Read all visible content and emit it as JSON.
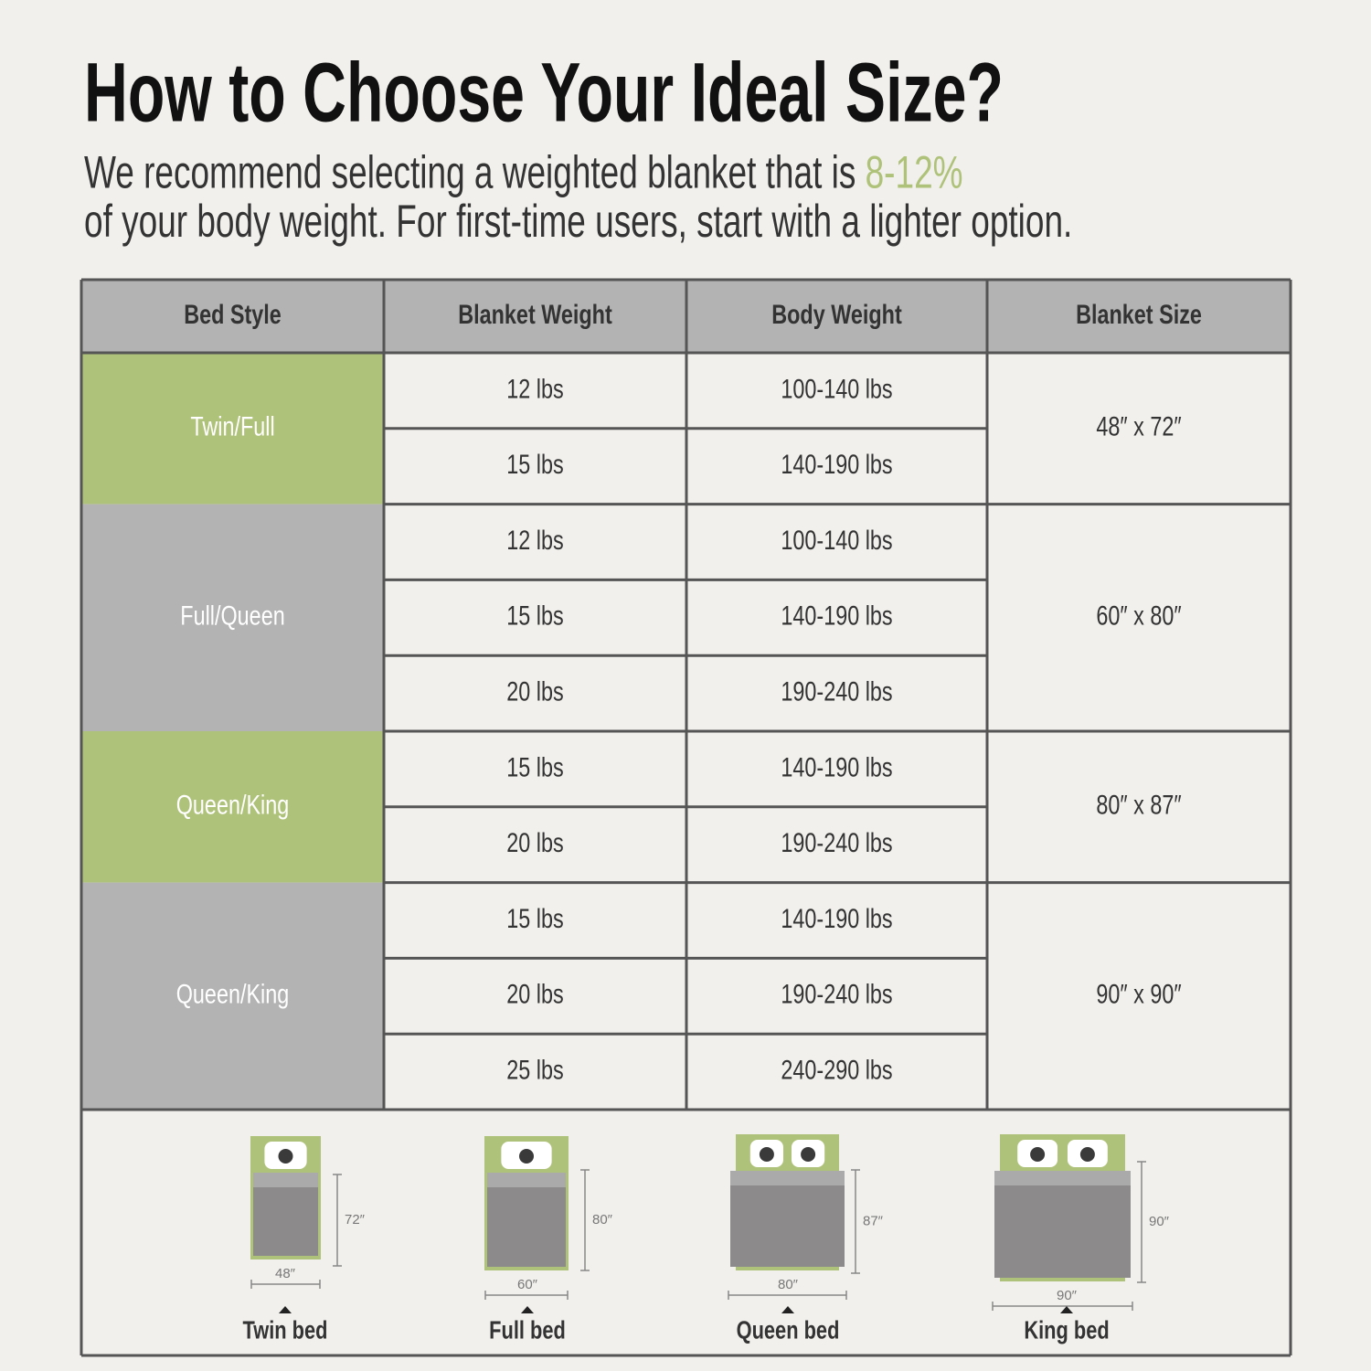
{
  "header": {
    "title": "How to Choose Your Ideal Size?",
    "subtitle_lead": "We recommend selecting a weighted blanket that is ",
    "subtitle_highlight": "8-12%",
    "subtitle_tail": "of your body weight. For first-time users, start with a lighter option."
  },
  "table": {
    "headers": [
      "Bed Style",
      "Blanket Weight",
      "Body Weight",
      "Blanket Size"
    ],
    "groups": [
      {
        "bed_style": "Twin/Full",
        "blanket_size": "48″ x 72″",
        "rows": [
          [
            "12 lbs",
            "100-140 lbs"
          ],
          [
            "15 lbs",
            "140-190 lbs"
          ]
        ]
      },
      {
        "bed_style": "Full/Queen",
        "blanket_size": "60″ x 80″",
        "rows": [
          [
            "12 lbs",
            "100-140 lbs"
          ],
          [
            "15 lbs",
            "140-190 lbs"
          ],
          [
            "20 lbs",
            "190-240 lbs"
          ]
        ]
      },
      {
        "bed_style": "Queen/King",
        "blanket_size": "80″ x 87″",
        "rows": [
          [
            "15 lbs",
            "140-190 lbs"
          ],
          [
            "20 lbs",
            "190-240 lbs"
          ]
        ]
      },
      {
        "bed_style": "Queen/King",
        "blanket_size": "90″ x 90″",
        "rows": [
          [
            "15 lbs",
            "140-190 lbs"
          ],
          [
            "20 lbs",
            "190-240 lbs"
          ],
          [
            "25 lbs",
            "240-290 lbs"
          ]
        ]
      }
    ]
  },
  "beds": [
    {
      "label": "Twin bed",
      "width": "48″",
      "length": "72″"
    },
    {
      "label": "Full bed",
      "width": "60″",
      "length": "80″"
    },
    {
      "label": "Queen bed",
      "width": "80″",
      "length": "87″"
    },
    {
      "label": "King bed",
      "width": "90″",
      "length": "90″"
    }
  ]
}
